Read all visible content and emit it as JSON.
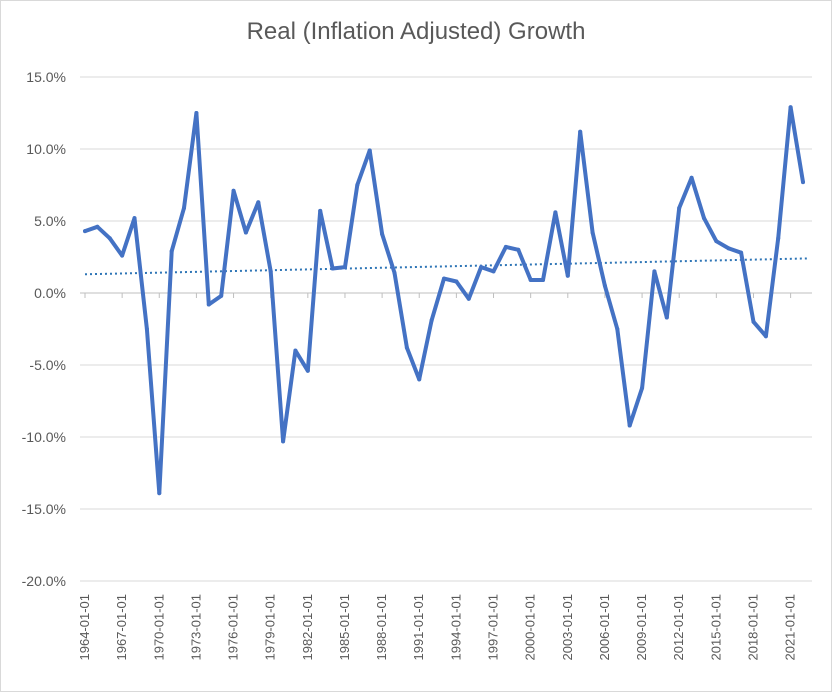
{
  "chart_data": {
    "type": "line",
    "title": "Real (Inflation Adjusted) Growth",
    "xlabel": "",
    "ylabel": "",
    "ylim": [
      -20,
      15
    ],
    "y_ticks": [
      "15.0%",
      "10.0%",
      "5.0%",
      "0.0%",
      "-5.0%",
      "-10.0%",
      "-15.0%",
      "-20.0%"
    ],
    "x_tick_labels": [
      "1964-01-01",
      "1967-01-01",
      "1970-01-01",
      "1973-01-01",
      "1976-01-01",
      "1979-01-01",
      "1982-01-01",
      "1985-01-01",
      "1988-01-01",
      "1991-01-01",
      "1994-01-01",
      "1997-01-01",
      "2000-01-01",
      "2003-01-01",
      "2006-01-01",
      "2009-01-01",
      "2012-01-01",
      "2015-01-01",
      "2018-01-01",
      "2021-01-01"
    ],
    "x": [
      1964,
      1965,
      1966,
      1967,
      1968,
      1969,
      1970,
      1971,
      1972,
      1973,
      1974,
      1975,
      1976,
      1977,
      1978,
      1979,
      1980,
      1981,
      1982,
      1983,
      1984,
      1985,
      1986,
      1987,
      1988,
      1989,
      1990,
      1991,
      1992,
      1993,
      1994,
      1995,
      1996,
      1997,
      1998,
      1999,
      2000,
      2001,
      2002,
      2003,
      2004,
      2005,
      2006,
      2007,
      2008,
      2009,
      2010,
      2011,
      2012,
      2013,
      2014,
      2015,
      2016,
      2017,
      2018,
      2019,
      2020,
      2021,
      2022
    ],
    "series": [
      {
        "values": [
          4.3,
          4.6,
          3.8,
          2.6,
          5.2,
          -2.5,
          -13.9,
          2.9,
          5.9,
          12.5,
          -0.8,
          -0.2,
          7.1,
          4.2,
          6.3,
          1.5,
          -10.3,
          -4.0,
          -5.4,
          5.7,
          1.7,
          1.8,
          7.5,
          9.9,
          4.1,
          1.4,
          -3.8,
          -6.0,
          -1.9,
          1.0,
          0.8,
          -0.4,
          1.8,
          1.5,
          3.2,
          3.0,
          0.9,
          0.9,
          5.6,
          1.2,
          11.2,
          4.2,
          0.5,
          -2.5,
          -9.2,
          -6.6,
          1.5,
          -1.7,
          5.9,
          8.0,
          5.2,
          3.6,
          3.1,
          2.8,
          -2.0,
          -3.0,
          3.8,
          12.9,
          7.7
        ],
        "color": "#4472c4"
      }
    ],
    "trendline": {
      "type": "linear",
      "start": 1.3,
      "end": 2.4,
      "color": "#2e75b6",
      "style": "dotted"
    },
    "grid": true,
    "legend": "none"
  }
}
